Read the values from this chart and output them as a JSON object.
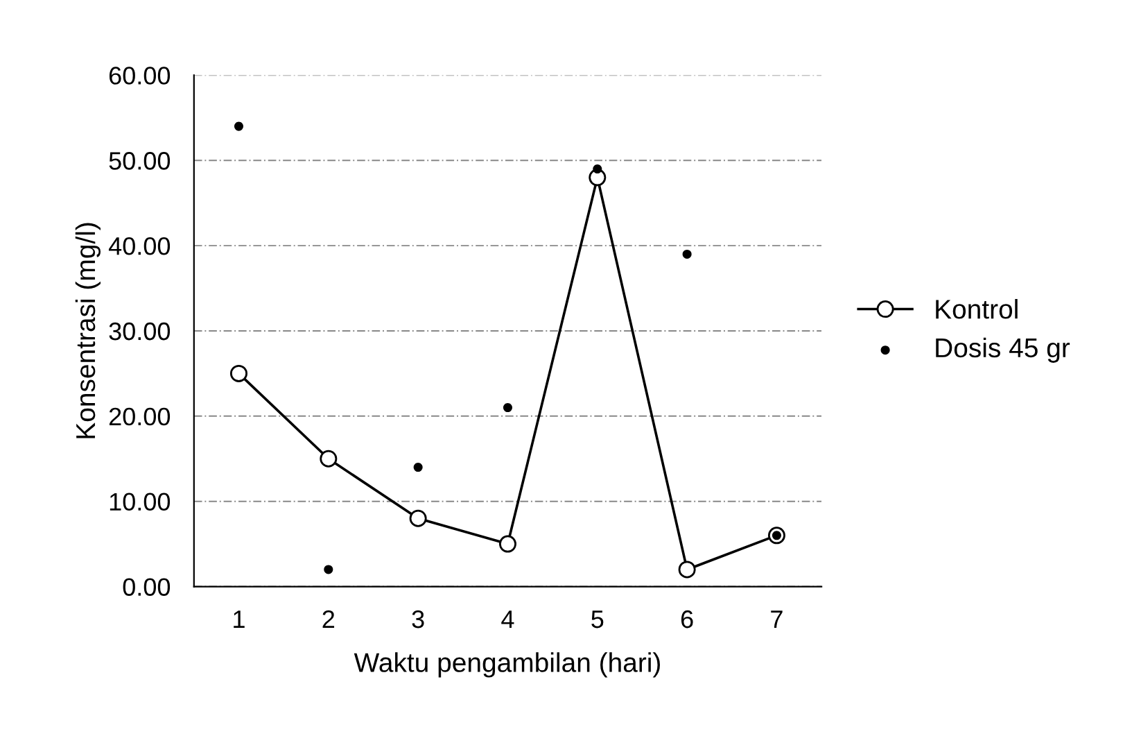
{
  "chart_data": {
    "type": "line",
    "xlabel": "Waktu pengambilan (hari)",
    "ylabel": "Konsentrasi (mg/l)",
    "categories": [
      "1",
      "2",
      "3",
      "4",
      "5",
      "6",
      "7"
    ],
    "series": [
      {
        "name": "Kontrol",
        "color": "#000000",
        "marker": "circle",
        "values": [
          25,
          15,
          8,
          5,
          48,
          2,
          6
        ]
      },
      {
        "name": "Dosis 45 gr",
        "color": "#000000",
        "type": "scatter",
        "marker": "circle",
        "values": [
          54,
          2,
          14,
          21,
          49,
          39,
          6
        ]
      }
    ],
    "ylim": [
      0,
      60
    ],
    "yticks": [
      {
        "value": 0,
        "label": "0.00"
      },
      {
        "value": 10,
        "label": "10.00"
      },
      {
        "value": 20,
        "label": "20.00"
      },
      {
        "value": 30,
        "label": "30.00"
      },
      {
        "value": 40,
        "label": "40.00"
      },
      {
        "value": 50,
        "label": "50.00"
      },
      {
        "value": 60,
        "label": "60.00"
      }
    ],
    "grid": "y",
    "legend": "right"
  }
}
